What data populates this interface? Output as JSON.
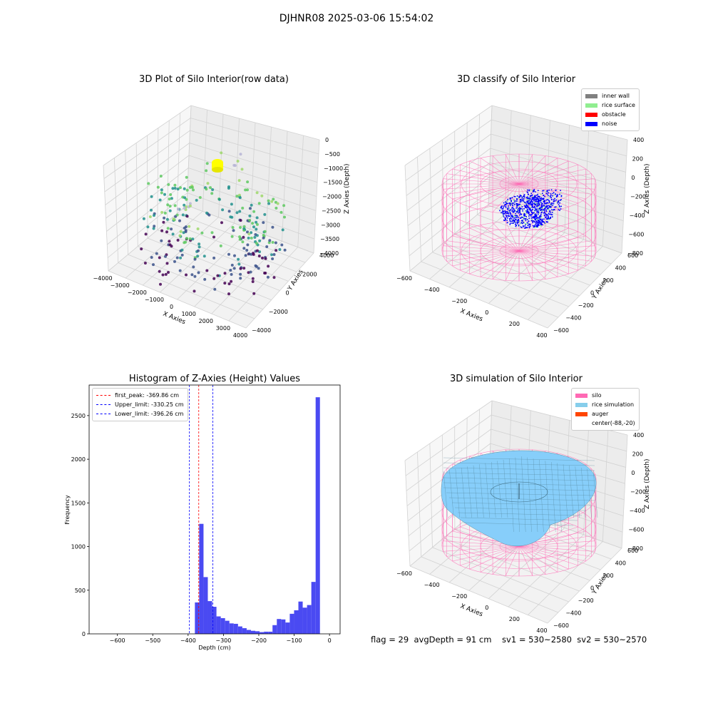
{
  "figure_title": "DJHNR08 2025-03-06 15:54:02",
  "status_line": "flag = 29  avgDepth = 91 cm    sv1 = 530~2580  sv2 = 530~2570",
  "colors": {
    "histogram_bar": "#4a4af2",
    "first_peak": "#ff0000",
    "limits": "#0000ff",
    "silo": "#ff69b4",
    "rice": "#87cefa",
    "auger": "#ff4500",
    "inner_wall": "#808080",
    "rice_surface": "#90ee90",
    "obstacle": "#ff0000",
    "noise": "#0000ff"
  },
  "chart_data": [
    {
      "type": "scatter",
      "projection": "3d",
      "title": "3D Plot of Silo Interior(row data)",
      "xlabel": "X Axies",
      "ylabel": "Y Axies",
      "zlabel": "Z Axies (Depth)",
      "x_ticks": [
        "−4000",
        "−3000",
        "−2000",
        "−1000",
        "0",
        "1000",
        "2000",
        "3000",
        "4000"
      ],
      "y_ticks": [
        "−4000",
        "−2000",
        "0",
        "2000",
        "4000"
      ],
      "z_ticks": [
        "0",
        "−500",
        "−1000",
        "−1500",
        "−2000",
        "−2500",
        "−3000",
        "−3500",
        "−4000"
      ],
      "xlim": [
        -4000,
        4000
      ],
      "ylim": [
        -4500,
        4500
      ],
      "zlim": [
        -4200,
        0
      ],
      "colormap": "viridis",
      "highlight_color": "#ffff00"
    },
    {
      "type": "scatter",
      "projection": "3d",
      "title": "3D classify of Silo Interior",
      "xlabel": "X Axies",
      "ylabel": "Y Axies",
      "zlabel": "Z Axies (Depth)",
      "x_ticks": [
        "−600",
        "−400",
        "−200",
        "0",
        "200",
        "400"
      ],
      "y_ticks": [
        "−600",
        "−400",
        "−200",
        "0",
        "200",
        "400",
        "600"
      ],
      "z_ticks": [
        "400",
        "200",
        "0",
        "−200",
        "−400",
        "−600",
        "−800"
      ],
      "legend": [
        "inner wall",
        "rice surface",
        "obstacle",
        "noise"
      ],
      "legend_colors": [
        "#808080",
        "#90ee90",
        "#ff0000",
        "#0000ff"
      ]
    },
    {
      "type": "bar",
      "title": "Histogram of Z-Axies (Height) Values",
      "xlabel": "Depth (cm)",
      "ylabel": "Frequency",
      "xlim": [
        -680,
        30
      ],
      "ylim": [
        0,
        2850
      ],
      "x_ticks": [
        -600,
        -500,
        -400,
        -300,
        -200,
        -100,
        0
      ],
      "x_tick_labels": [
        "−600",
        "−500",
        "−400",
        "−300",
        "−200",
        "−100",
        "0"
      ],
      "y_ticks": [
        0,
        500,
        1000,
        1500,
        2000,
        2500
      ],
      "bin_width": 12.2,
      "bin_starts": [
        -380.8,
        -368.6,
        -356.4,
        -344.2,
        -332.0,
        -319.8,
        -307.6,
        -295.4,
        -283.2,
        -271.0,
        -258.8,
        -246.6,
        -234.4,
        -222.2,
        -210.0,
        -197.8,
        -185.6,
        -173.4,
        -161.2,
        -149.0,
        -136.8,
        -124.6,
        -112.4,
        -100.2,
        -88.0,
        -75.8,
        -63.6,
        -51.4,
        -39.2,
        -27.0,
        -14.8
      ],
      "values": [
        360,
        1260,
        650,
        375,
        310,
        200,
        180,
        150,
        120,
        115,
        85,
        65,
        45,
        35,
        30,
        20,
        25,
        25,
        100,
        170,
        165,
        130,
        230,
        270,
        370,
        300,
        330,
        595,
        2710,
        0,
        0
      ],
      "lines": [
        {
          "label": "first_peak: -369.86 cm",
          "x": -369.86,
          "color": "#ff0000"
        },
        {
          "label": "Upper_limit: -330.25 cm",
          "x": -330.25,
          "color": "#0000ff"
        },
        {
          "label": "Lower_limit: -396.26 cm",
          "x": -396.26,
          "color": "#0000ff"
        }
      ],
      "legend_placement": "top-left"
    },
    {
      "type": "surface",
      "projection": "3d",
      "title": "3D simulation of Silo Interior",
      "xlabel": "X Axies",
      "ylabel": "Y Axies",
      "zlabel": "Z Axies (Depth)",
      "x_ticks": [
        "−600",
        "−400",
        "−200",
        "0",
        "200",
        "400"
      ],
      "y_ticks": [
        "−600",
        "−400",
        "−200",
        "0",
        "200",
        "400",
        "600"
      ],
      "z_ticks": [
        "400",
        "200",
        "0",
        "−200",
        "−400",
        "−600",
        "−800"
      ],
      "legend": [
        "silo",
        "rice simulation",
        "auger",
        "center(-88,-20)"
      ],
      "legend_colors": [
        "#ff69b4",
        "#87ceeb",
        "#ff4500",
        ""
      ]
    }
  ]
}
